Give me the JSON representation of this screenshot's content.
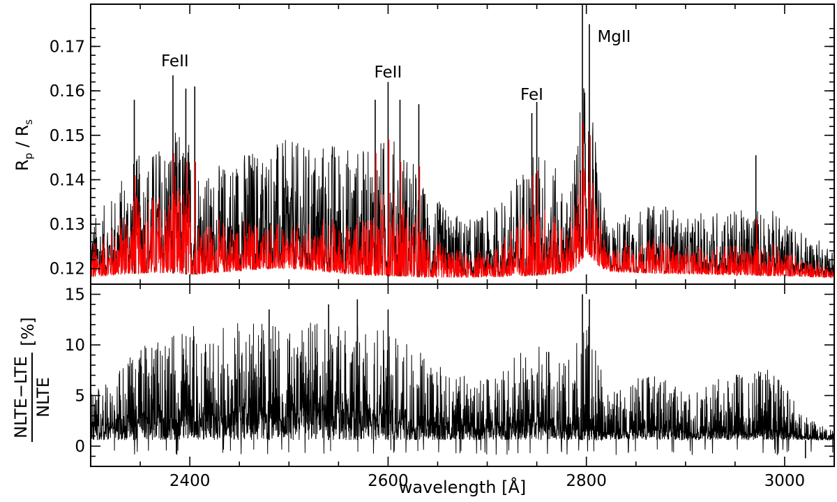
{
  "chart_data": [
    {
      "type": "line",
      "panel": "top",
      "ylabel": {
        "main": "R",
        "sub1": "p",
        "sep": " / R",
        "sub2": "s"
      },
      "xlim": [
        2300,
        3050
      ],
      "ylim": [
        0.1165,
        0.1795
      ],
      "yticks": [
        0.12,
        0.13,
        0.14,
        0.15,
        0.16,
        0.17
      ],
      "ytick_labels": [
        "0.12",
        "0.13",
        "0.14",
        "0.15",
        "0.16",
        "0.17"
      ],
      "xticks": [
        2400,
        2600,
        2800,
        3000
      ],
      "annotations": [
        {
          "text": "FeII",
          "x": 2385,
          "y": 0.1655
        },
        {
          "text": "FeII",
          "x": 2600,
          "y": 0.163
        },
        {
          "text": "FeI",
          "x": 2745,
          "y": 0.158
        },
        {
          "text": "MgII",
          "x": 2828,
          "y": 0.171
        }
      ],
      "series": [
        {
          "color": "#000000"
        },
        {
          "color": "#ff0000"
        }
      ],
      "envelope": {
        "x": [
          2300,
          2320,
          2340,
          2360,
          2380,
          2400,
          2420,
          2440,
          2460,
          2480,
          2500,
          2520,
          2540,
          2560,
          2580,
          2600,
          2620,
          2640,
          2660,
          2680,
          2700,
          2720,
          2740,
          2760,
          2780,
          2790,
          2800,
          2810,
          2820,
          2840,
          2860,
          2880,
          2900,
          2920,
          2940,
          2960,
          2980,
          3000,
          3020,
          3050
        ],
        "black_peak": [
          0.131,
          0.136,
          0.145,
          0.147,
          0.152,
          0.15,
          0.141,
          0.146,
          0.148,
          0.149,
          0.149,
          0.148,
          0.15,
          0.148,
          0.147,
          0.151,
          0.147,
          0.137,
          0.134,
          0.131,
          0.133,
          0.137,
          0.146,
          0.148,
          0.136,
          0.15,
          0.165,
          0.15,
          0.13,
          0.133,
          0.134,
          0.135,
          0.131,
          0.133,
          0.134,
          0.133,
          0.135,
          0.131,
          0.128,
          0.125
        ],
        "red_peak": [
          0.127,
          0.13,
          0.138,
          0.14,
          0.142,
          0.141,
          0.132,
          0.132,
          0.132,
          0.132,
          0.131,
          0.131,
          0.133,
          0.131,
          0.136,
          0.14,
          0.137,
          0.129,
          0.126,
          0.124,
          0.125,
          0.13,
          0.136,
          0.138,
          0.129,
          0.14,
          0.148,
          0.14,
          0.125,
          0.127,
          0.128,
          0.128,
          0.125,
          0.126,
          0.127,
          0.126,
          0.127,
          0.125,
          0.123,
          0.121
        ],
        "baseline": [
          0.118,
          0.1185,
          0.1188,
          0.119,
          0.119,
          0.1186,
          0.119,
          0.1193,
          0.1197,
          0.12,
          0.12,
          0.1197,
          0.1192,
          0.1188,
          0.1185,
          0.1183,
          0.1182,
          0.118,
          0.118,
          0.118,
          0.1181,
          0.1182,
          0.1184,
          0.1185,
          0.119,
          0.12,
          0.124,
          0.121,
          0.1195,
          0.1192,
          0.119,
          0.1189,
          0.1188,
          0.1187,
          0.1186,
          0.1185,
          0.1184,
          0.1183,
          0.1182,
          0.118
        ]
      },
      "strong_lines": [
        {
          "x": 2383,
          "black": 0.1635,
          "red": 0.146
        },
        {
          "x": 2396,
          "black": 0.1605,
          "red": 0.144
        },
        {
          "x": 2405,
          "black": 0.161,
          "red": 0.144
        },
        {
          "x": 2344,
          "black": 0.158,
          "red": 0.141
        },
        {
          "x": 2600,
          "black": 0.162,
          "red": 0.149
        },
        {
          "x": 2587,
          "black": 0.158,
          "red": 0.146
        },
        {
          "x": 2612,
          "black": 0.158,
          "red": 0.144
        },
        {
          "x": 2631,
          "black": 0.157,
          "red": 0.143
        },
        {
          "x": 2750,
          "black": 0.1575,
          "red": 0.142
        },
        {
          "x": 2745,
          "black": 0.155,
          "red": 0.141
        },
        {
          "x": 2796,
          "black": 0.1795,
          "red": 0.153
        },
        {
          "x": 2803,
          "black": 0.175,
          "red": 0.15
        },
        {
          "x": 2971,
          "black": 0.1455,
          "red": 0.131
        }
      ]
    },
    {
      "type": "line",
      "panel": "bottom",
      "ylabel": {
        "numerator": "NLTE−LTE",
        "denominator": "NLTE",
        "unit": "[%]"
      },
      "xlabel": "wavelength [Å]",
      "xlim": [
        2300,
        3050
      ],
      "ylim": [
        -2,
        16
      ],
      "yticks": [
        0,
        5,
        10,
        15
      ],
      "ytick_labels": [
        "0",
        "5",
        "10",
        "15"
      ],
      "xticks": [
        2400,
        2600,
        2800,
        3000
      ],
      "xtick_labels": [
        "2400",
        "2600",
        "2800",
        "3000"
      ],
      "series": [
        {
          "color": "#000000"
        }
      ],
      "envelope": {
        "x": [
          2300,
          2320,
          2340,
          2360,
          2380,
          2400,
          2420,
          2440,
          2460,
          2480,
          2500,
          2520,
          2540,
          2560,
          2580,
          2600,
          2620,
          2640,
          2660,
          2680,
          2700,
          2720,
          2740,
          2760,
          2780,
          2790,
          2800,
          2810,
          2820,
          2840,
          2860,
          2880,
          2900,
          2920,
          2940,
          2960,
          2980,
          3000,
          3020,
          3050
        ],
        "peak": [
          6.0,
          6.5,
          9.0,
          10.5,
          11.5,
          12.0,
          12.5,
          13.0,
          13.0,
          12.5,
          12.5,
          12.5,
          12.0,
          12.5,
          12.0,
          11.5,
          11.0,
          8.5,
          8.0,
          7.0,
          7.0,
          8.5,
          10.0,
          10.0,
          9.5,
          12.0,
          13.0,
          10.0,
          5.0,
          6.5,
          7.0,
          7.5,
          5.5,
          6.0,
          7.0,
          7.5,
          8.0,
          6.0,
          3.0,
          1.5
        ],
        "base": [
          2.5,
          2.8,
          3.2,
          3.6,
          4.0,
          4.0,
          4.2,
          4.5,
          4.6,
          4.5,
          4.4,
          4.6,
          4.5,
          4.4,
          4.2,
          4.0,
          3.6,
          2.5,
          2.4,
          2.2,
          2.0,
          2.4,
          3.0,
          3.0,
          2.5,
          2.0,
          1.8,
          1.5,
          1.2,
          1.8,
          2.0,
          2.0,
          1.5,
          1.5,
          1.6,
          1.6,
          1.8,
          1.4,
          1.0,
          0.8
        ]
      },
      "strong_lines": [
        {
          "x": 2796,
          "value": 15.0
        },
        {
          "x": 2803,
          "value": 14.5
        },
        {
          "x": 2569,
          "value": 14.5
        },
        {
          "x": 2540,
          "value": 14.0
        },
        {
          "x": 2600,
          "value": 13.5
        },
        {
          "x": 2480,
          "value": 13.5
        },
        {
          "x": 3021,
          "value": -1.2
        }
      ]
    }
  ]
}
